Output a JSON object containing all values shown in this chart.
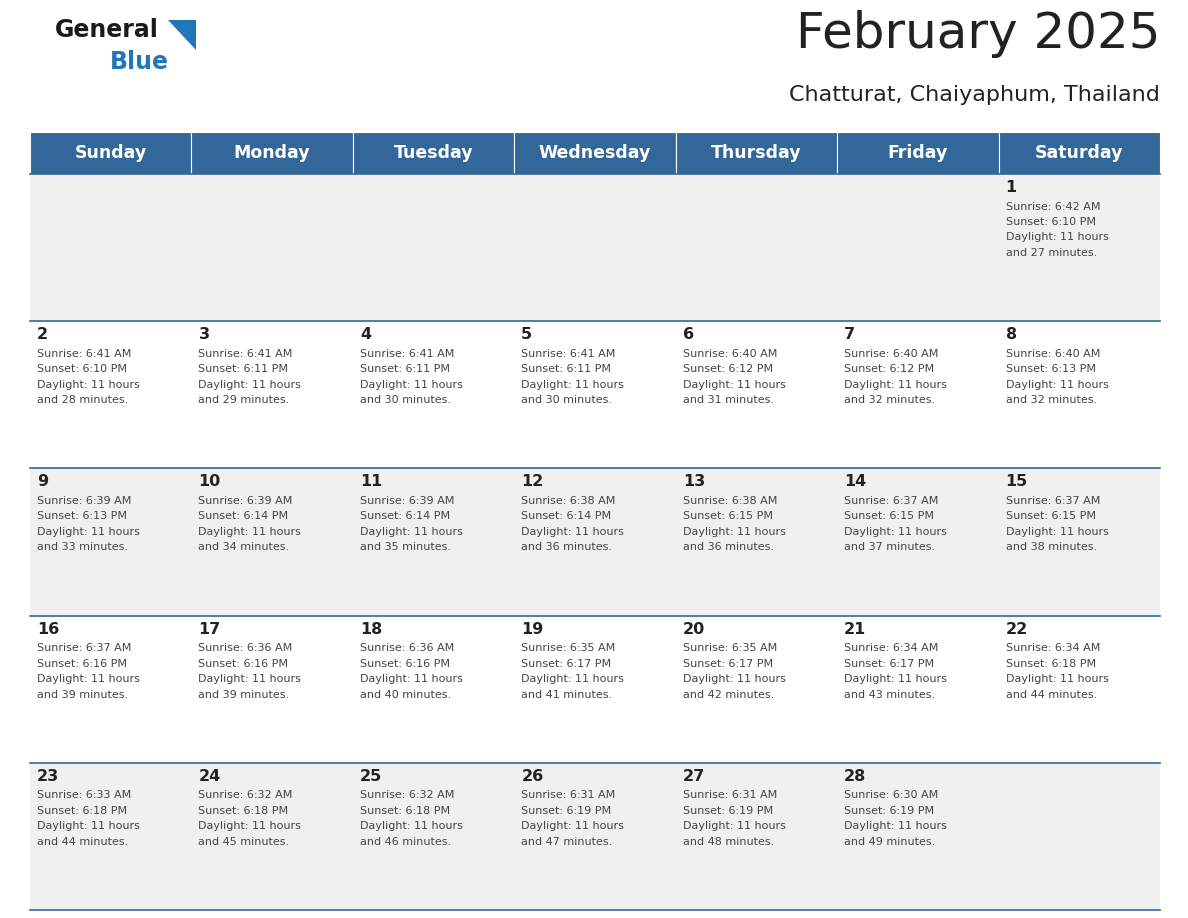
{
  "title": "February 2025",
  "subtitle": "Chatturat, Chaiyaphum, Thailand",
  "header_bg": "#336699",
  "header_text_color": "#ffffff",
  "days_of_week": [
    "Sunday",
    "Monday",
    "Tuesday",
    "Wednesday",
    "Thursday",
    "Friday",
    "Saturday"
  ],
  "cell_bg_odd": "#f0f0f0",
  "cell_bg_even": "#ffffff",
  "cell_border_color": "#336699",
  "text_color": "#444444",
  "day_num_color": "#222222",
  "calendar": [
    [
      null,
      null,
      null,
      null,
      null,
      null,
      1
    ],
    [
      2,
      3,
      4,
      5,
      6,
      7,
      8
    ],
    [
      9,
      10,
      11,
      12,
      13,
      14,
      15
    ],
    [
      16,
      17,
      18,
      19,
      20,
      21,
      22
    ],
    [
      23,
      24,
      25,
      26,
      27,
      28,
      null
    ]
  ],
  "sunrise": {
    "1": "6:42 AM",
    "2": "6:41 AM",
    "3": "6:41 AM",
    "4": "6:41 AM",
    "5": "6:41 AM",
    "6": "6:40 AM",
    "7": "6:40 AM",
    "8": "6:40 AM",
    "9": "6:39 AM",
    "10": "6:39 AM",
    "11": "6:39 AM",
    "12": "6:38 AM",
    "13": "6:38 AM",
    "14": "6:37 AM",
    "15": "6:37 AM",
    "16": "6:37 AM",
    "17": "6:36 AM",
    "18": "6:36 AM",
    "19": "6:35 AM",
    "20": "6:35 AM",
    "21": "6:34 AM",
    "22": "6:34 AM",
    "23": "6:33 AM",
    "24": "6:32 AM",
    "25": "6:32 AM",
    "26": "6:31 AM",
    "27": "6:31 AM",
    "28": "6:30 AM"
  },
  "sunset": {
    "1": "6:10 PM",
    "2": "6:10 PM",
    "3": "6:11 PM",
    "4": "6:11 PM",
    "5": "6:11 PM",
    "6": "6:12 PM",
    "7": "6:12 PM",
    "8": "6:13 PM",
    "9": "6:13 PM",
    "10": "6:14 PM",
    "11": "6:14 PM",
    "12": "6:14 PM",
    "13": "6:15 PM",
    "14": "6:15 PM",
    "15": "6:15 PM",
    "16": "6:16 PM",
    "17": "6:16 PM",
    "18": "6:16 PM",
    "19": "6:17 PM",
    "20": "6:17 PM",
    "21": "6:17 PM",
    "22": "6:18 PM",
    "23": "6:18 PM",
    "24": "6:18 PM",
    "25": "6:18 PM",
    "26": "6:19 PM",
    "27": "6:19 PM",
    "28": "6:19 PM"
  },
  "daylight_hours": {
    "1": "11 hours\nand 27 minutes.",
    "2": "11 hours\nand 28 minutes.",
    "3": "11 hours\nand 29 minutes.",
    "4": "11 hours\nand 30 minutes.",
    "5": "11 hours\nand 30 minutes.",
    "6": "11 hours\nand 31 minutes.",
    "7": "11 hours\nand 32 minutes.",
    "8": "11 hours\nand 32 minutes.",
    "9": "11 hours\nand 33 minutes.",
    "10": "11 hours\nand 34 minutes.",
    "11": "11 hours\nand 35 minutes.",
    "12": "11 hours\nand 36 minutes.",
    "13": "11 hours\nand 36 minutes.",
    "14": "11 hours\nand 37 minutes.",
    "15": "11 hours\nand 38 minutes.",
    "16": "11 hours\nand 39 minutes.",
    "17": "11 hours\nand 39 minutes.",
    "18": "11 hours\nand 40 minutes.",
    "19": "11 hours\nand 41 minutes.",
    "20": "11 hours\nand 42 minutes.",
    "21": "11 hours\nand 43 minutes.",
    "22": "11 hours\nand 44 minutes.",
    "23": "11 hours\nand 44 minutes.",
    "24": "11 hours\nand 45 minutes.",
    "25": "11 hours\nand 46 minutes.",
    "26": "11 hours\nand 47 minutes.",
    "27": "11 hours\nand 48 minutes.",
    "28": "11 hours\nand 49 minutes."
  }
}
